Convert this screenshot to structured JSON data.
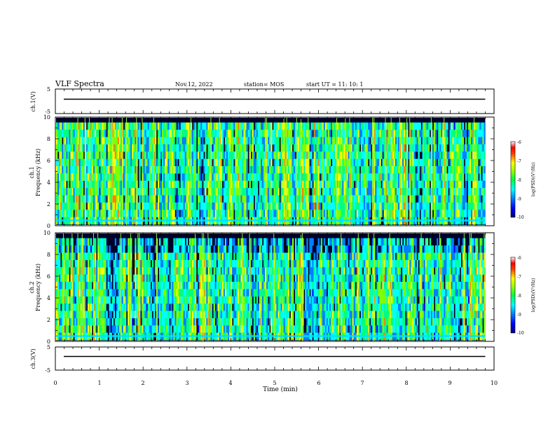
{
  "header": {
    "title": "VLF Spectra",
    "date": "Nov.12, 2022",
    "station": "station= MOS",
    "start": "start UT = 11: 10: 1"
  },
  "colors": {
    "background": "#00002a",
    "colormap": [
      "#000080",
      "#0000ff",
      "#0080ff",
      "#00ffff",
      "#00ff80",
      "#80ff00",
      "#ffff00",
      "#ff8000",
      "#ff0000",
      "#ffffff"
    ]
  },
  "chart_data": [
    {
      "type": "line",
      "panel": "ch1-waveform",
      "ylabel": "ch.1(V)",
      "ylim": [
        -5,
        5
      ],
      "yticks": [
        "5",
        "-5"
      ],
      "xlim": [
        0,
        10
      ],
      "series": [
        {
          "x": [
            0,
            9.8
          ],
          "y": [
            0,
            0
          ]
        }
      ]
    },
    {
      "type": "heatmap",
      "panel": "ch1-spectrogram",
      "ylabel": "ch.1\nFrequency (kHz)",
      "ylim": [
        0,
        10
      ],
      "yticks": [
        "0",
        "2",
        "4",
        "6",
        "8",
        "10"
      ],
      "xlim": [
        0,
        10
      ],
      "data_extent_min": 9.8,
      "colorbar": {
        "label": "log(PSD)(V²/Hz)",
        "ticks": [
          "-6",
          "-7",
          "-8",
          "-9",
          "-10"
        ],
        "range": [
          -10,
          -6
        ]
      }
    },
    {
      "type": "heatmap",
      "panel": "ch2-spectrogram",
      "ylabel": "ch.2\nFrequency (kHz)",
      "ylim": [
        0,
        10
      ],
      "yticks": [
        "0",
        "2",
        "4",
        "6",
        "8",
        "10"
      ],
      "xlim": [
        0,
        10
      ],
      "data_extent_min": 9.8,
      "colorbar": {
        "label": "log(PSD)(V²/Hz)",
        "ticks": [
          "-6",
          "-7",
          "-8",
          "-9",
          "-10"
        ],
        "range": [
          -10,
          -6
        ]
      }
    },
    {
      "type": "line",
      "panel": "ch3-waveform",
      "ylabel": "ch.3(V)",
      "ylim": [
        -5,
        5
      ],
      "yticks": [
        "5",
        "-5"
      ],
      "xlim": [
        0,
        10
      ],
      "series": [
        {
          "x": [
            0,
            9.8
          ],
          "y": [
            0,
            0
          ]
        }
      ]
    }
  ],
  "xaxis": {
    "label": "Time (min)",
    "ticks": [
      "0",
      "1",
      "2",
      "3",
      "4",
      "5",
      "6",
      "7",
      "8",
      "9",
      "10"
    ]
  }
}
